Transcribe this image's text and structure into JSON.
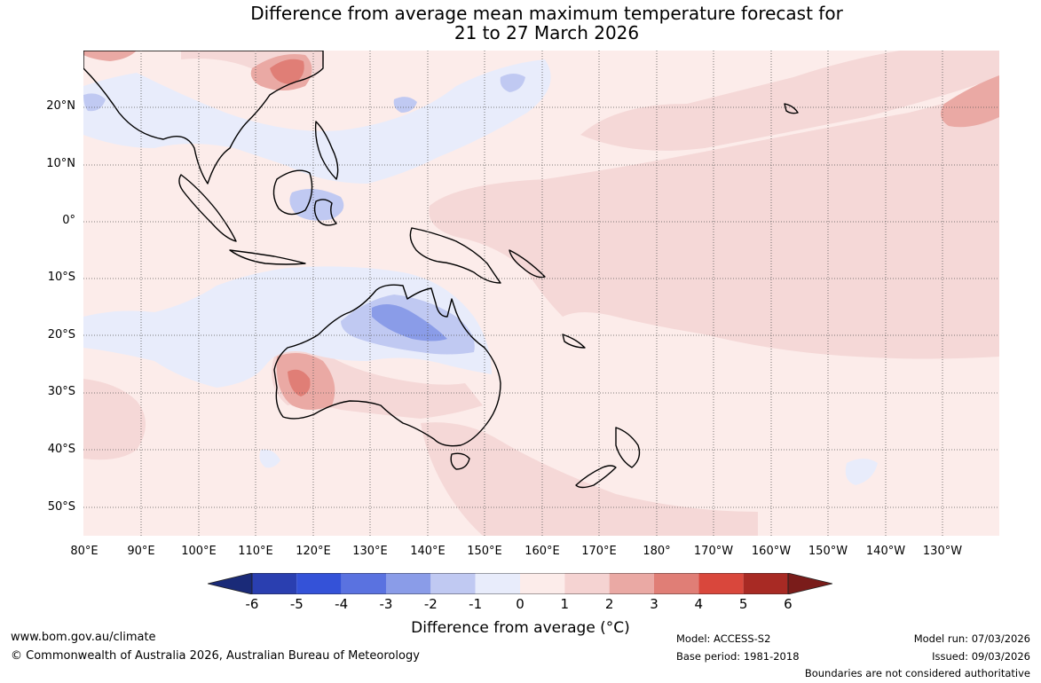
{
  "title": {
    "line1": "Difference from average mean maximum temperature forecast for",
    "line2": "21 to 27 March 2026"
  },
  "latitude_labels": [
    "20°N",
    "10°N",
    "0°",
    "10°S",
    "20°S",
    "30°S",
    "40°S",
    "50°S"
  ],
  "longitude_labels": [
    "80°E",
    "90°E",
    "100°E",
    "110°E",
    "120°E",
    "130°E",
    "140°E",
    "150°E",
    "160°E",
    "170°E",
    "180°",
    "170°W",
    "160°W",
    "150°W",
    "140°W",
    "130°W"
  ],
  "legend": {
    "ticks": [
      "-6",
      "-5",
      "-4",
      "-3",
      "-2",
      "-1",
      "0",
      "1",
      "2",
      "3",
      "4",
      "5",
      "6"
    ],
    "colors": [
      "#1a2a78",
      "#2a3fb0",
      "#3452d8",
      "#5a72e0",
      "#8a9ce8",
      "#c0c9f2",
      "#e8ecfb",
      "#fcecea",
      "#f5d3d2",
      "#eaa9a4",
      "#e07e76",
      "#d9473c",
      "#a82a24",
      "#7a1c1a"
    ],
    "label": "Difference from average (°C)"
  },
  "footer": {
    "website": "www.bom.gov.au/climate",
    "copyright": "© Commonwealth of Australia 2026, Australian Bureau of Meteorology",
    "model": "Model: ACCESS-S2",
    "base_period": "Base period: 1981-2018",
    "model_run": "Model run: 07/03/2026",
    "issued": "Issued: 09/03/2026",
    "disclaimer": "Boundaries are not considered authoritative"
  }
}
